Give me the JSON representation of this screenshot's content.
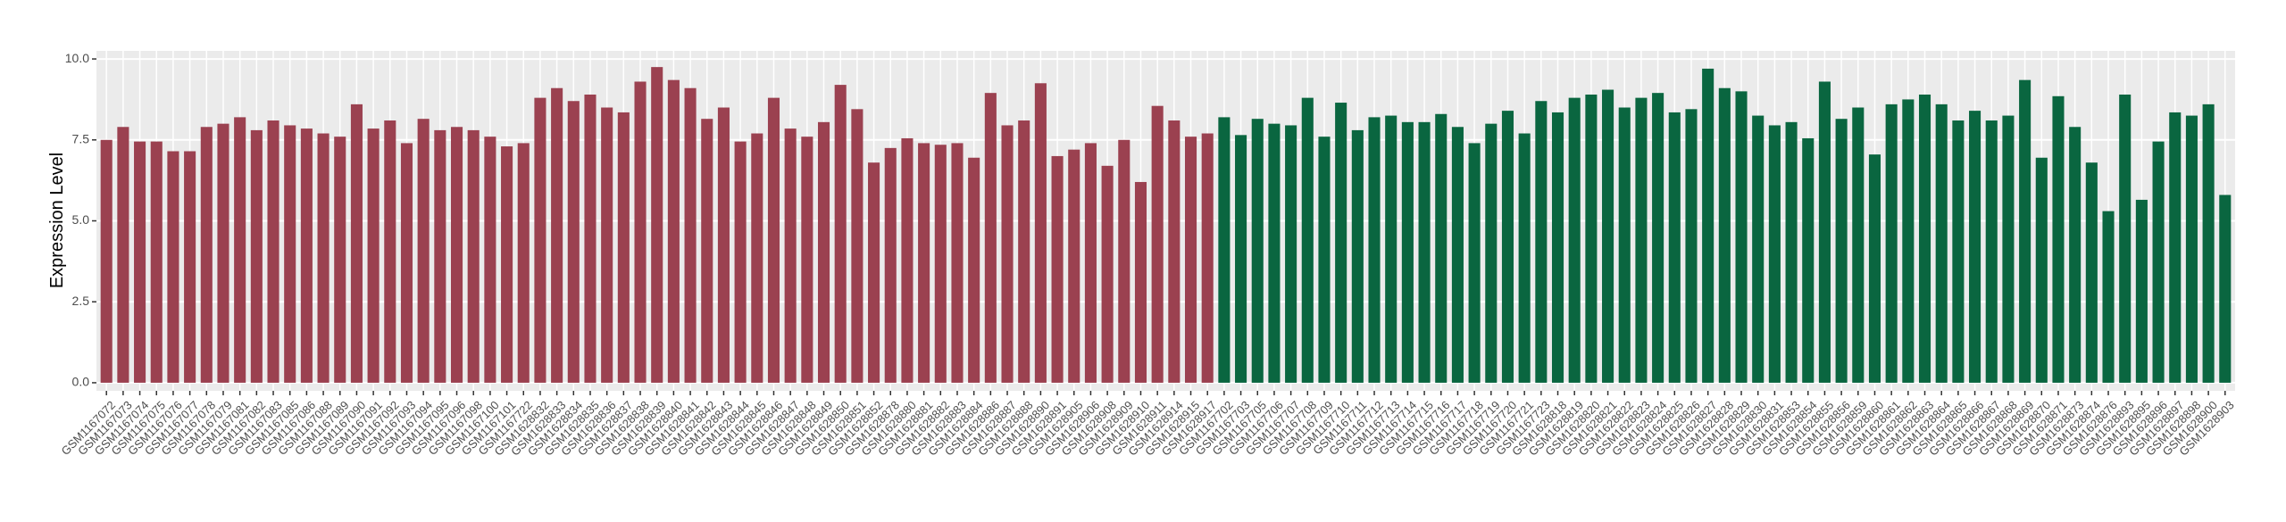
{
  "chart_data": {
    "type": "bar",
    "ylabel": "Expression Level",
    "ylim": [
      -0.25,
      10.25
    ],
    "yticks": [
      {
        "value": 0,
        "label": "0.0"
      },
      {
        "value": 2.5,
        "label": "2.5"
      },
      {
        "value": 5,
        "label": "5.0"
      },
      {
        "value": 7.5,
        "label": "7.5"
      },
      {
        "value": 10,
        "label": "10.0"
      }
    ],
    "grid": true,
    "background": "#ebebeb",
    "groups": [
      {
        "color": "#9b4150",
        "categories": [
          "GSM1167072",
          "GSM1167073",
          "GSM1167074",
          "GSM1167075",
          "GSM1167076",
          "GSM1167077",
          "GSM1167078",
          "GSM1167079",
          "GSM1167081",
          "GSM1167082",
          "GSM1167083",
          "GSM1167085",
          "GSM1167086",
          "GSM1167088",
          "GSM1167089",
          "GSM1167090",
          "GSM1167091",
          "GSM1167092",
          "GSM1167093",
          "GSM1167094",
          "GSM1167095",
          "GSM1167096",
          "GSM1167098",
          "GSM1167100",
          "GSM1167101",
          "GSM1167722",
          "GSM1628832",
          "GSM1628833",
          "GSM1628834",
          "GSM1628835",
          "GSM1628836",
          "GSM1628837",
          "GSM1628838",
          "GSM1628839",
          "GSM1628840",
          "GSM1628841",
          "GSM1628842",
          "GSM1628843",
          "GSM1628844",
          "GSM1628845",
          "GSM1628846",
          "GSM1628847",
          "GSM1628848",
          "GSM1628849",
          "GSM1628850",
          "GSM1628851",
          "GSM1628852",
          "GSM1628878",
          "GSM1628880",
          "GSM1628881",
          "GSM1628882",
          "GSM1628883",
          "GSM1628884",
          "GSM1628886",
          "GSM1628887",
          "GSM1628888",
          "GSM1628890",
          "GSM1628891",
          "GSM1628905",
          "GSM1628906",
          "GSM1628908",
          "GSM1628909",
          "GSM1628910",
          "GSM1628911",
          "GSM1628914",
          "GSM1628915",
          "GSM1628917"
        ],
        "values": [
          7.5,
          7.9,
          7.45,
          7.45,
          7.15,
          7.15,
          7.9,
          8.0,
          8.2,
          7.8,
          8.1,
          7.95,
          7.85,
          7.7,
          7.6,
          8.6,
          7.85,
          8.1,
          7.4,
          8.15,
          7.8,
          7.9,
          7.8,
          7.6,
          7.3,
          7.4,
          8.8,
          9.1,
          8.7,
          8.9,
          8.5,
          8.35,
          9.3,
          9.75,
          9.35,
          9.1,
          8.15,
          8.5,
          7.45,
          7.7,
          8.8,
          7.85,
          7.6,
          8.05,
          9.2,
          8.45,
          6.8,
          7.25,
          7.55,
          7.4,
          7.35,
          7.4,
          6.95,
          8.95,
          7.95,
          8.1,
          9.25,
          7.0,
          7.2,
          7.4,
          6.7,
          7.5,
          6.2,
          8.55,
          8.1,
          7.6,
          7.7
        ]
      },
      {
        "color": "#0a6640",
        "categories": [
          "GSM1167702",
          "GSM1167703",
          "GSM1167705",
          "GSM1167706",
          "GSM1167707",
          "GSM1167708",
          "GSM1167709",
          "GSM1167710",
          "GSM1167711",
          "GSM1167712",
          "GSM1167713",
          "GSM1167714",
          "GSM1167715",
          "GSM1167716",
          "GSM1167717",
          "GSM1167718",
          "GSM1167719",
          "GSM1167720",
          "GSM1167721",
          "GSM1167723",
          "GSM1628818",
          "GSM1628819",
          "GSM1628820",
          "GSM1628821",
          "GSM1628822",
          "GSM1628823",
          "GSM1628824",
          "GSM1628825",
          "GSM1628826",
          "GSM1628827",
          "GSM1628828",
          "GSM1628829",
          "GSM1628830",
          "GSM1628831",
          "GSM1628853",
          "GSM1628854",
          "GSM1628855",
          "GSM1628856",
          "GSM1628859",
          "GSM1628860",
          "GSM1628861",
          "GSM1628862",
          "GSM1628863",
          "GSM1628864",
          "GSM1628865",
          "GSM1628866",
          "GSM1628867",
          "GSM1628868",
          "GSM1628869",
          "GSM1628870",
          "GSM1628871",
          "GSM1628873",
          "GSM1628874",
          "GSM1628876",
          "GSM1628893",
          "GSM1628895",
          "GSM1628896",
          "GSM1628897",
          "GSM1628898",
          "GSM1628900",
          "GSM1628903"
        ],
        "values": [
          8.2,
          7.65,
          8.15,
          8.0,
          7.95,
          8.8,
          7.6,
          8.65,
          7.8,
          8.2,
          8.25,
          8.05,
          8.05,
          8.3,
          7.9,
          7.4,
          8.0,
          8.4,
          7.7,
          8.7,
          8.35,
          8.8,
          8.9,
          9.05,
          8.5,
          8.8,
          8.95,
          8.35,
          8.45,
          9.7,
          9.1,
          9.0,
          8.25,
          7.95,
          8.05,
          7.55,
          9.3,
          8.15,
          8.5,
          7.05,
          8.6,
          8.75,
          8.9,
          8.6,
          8.1,
          8.4,
          8.1,
          8.25,
          9.35,
          6.95,
          8.85,
          7.9,
          6.8,
          5.3,
          8.9,
          5.65,
          7.45,
          8.35,
          8.25,
          8.6,
          5.8
        ]
      }
    ]
  }
}
